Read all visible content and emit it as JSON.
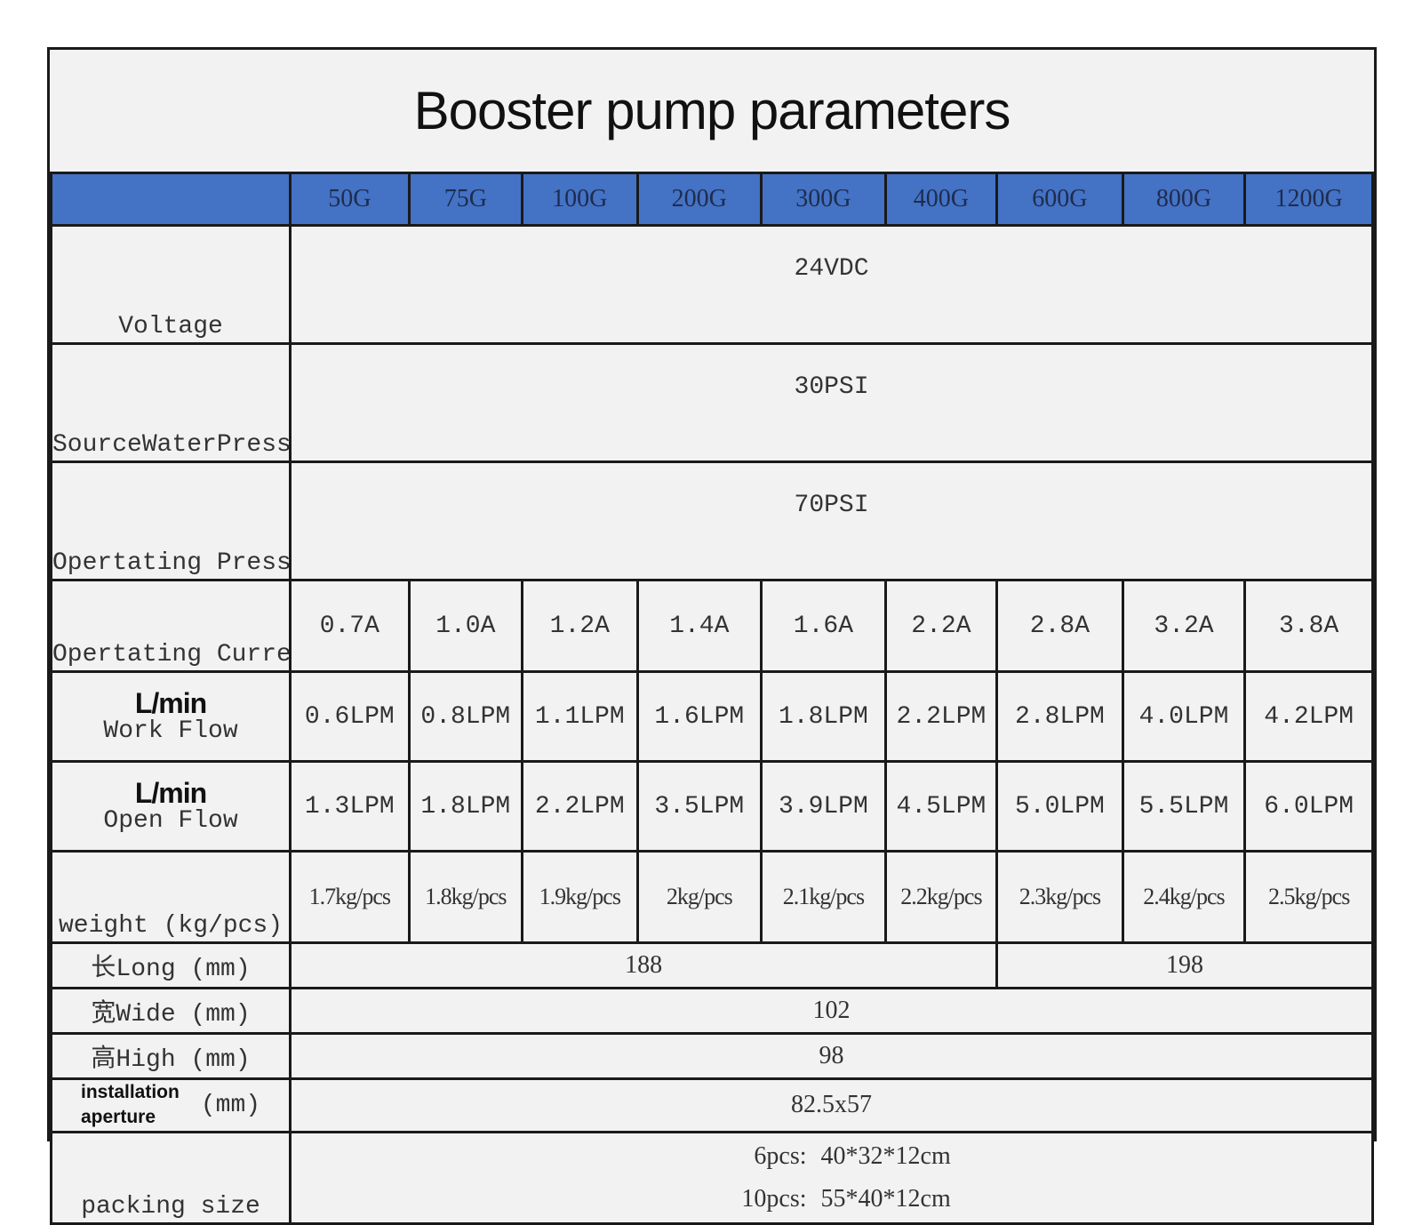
{
  "title": "Booster pump parameters",
  "models": [
    "50G",
    "75G",
    "100G",
    "200G",
    "300G",
    "400G",
    "600G",
    "800G",
    "1200G"
  ],
  "rows": {
    "voltage": {
      "label": "Voltage",
      "value": "24VDC"
    },
    "source_pressure": {
      "label": "SourceWaterPressure",
      "value": "30PSI"
    },
    "operating_pressure": {
      "label": "Opertating Pressure",
      "value": "70PSI"
    },
    "operating_current": {
      "label": "Opertating Current",
      "values": [
        "0.7A",
        "1.0A",
        "1.2A",
        "1.4A",
        "1.6A",
        "2.2A",
        "2.8A",
        "3.2A",
        "3.8A"
      ]
    },
    "work_flow": {
      "unit": "L/min",
      "label": "Work Flow",
      "values": [
        "0.6LPM",
        "0.8LPM",
        "1.1LPM",
        "1.6LPM",
        "1.8LPM",
        "2.2LPM",
        "2.8LPM",
        "4.0LPM",
        "4.2LPM"
      ]
    },
    "open_flow": {
      "unit": "L/min",
      "label": "Open Flow",
      "values": [
        "1.3LPM",
        "1.8LPM",
        "2.2LPM",
        "3.5LPM",
        "3.9LPM",
        "4.5LPM",
        "5.0LPM",
        "5.5LPM",
        "6.0LPM"
      ]
    },
    "weight": {
      "label": "weight (kg/pcs)",
      "values": [
        "1.7kg/pcs",
        "1.8kg/pcs",
        "1.9kg/pcs",
        "2kg/pcs",
        "2.1kg/pcs",
        "2.2kg/pcs",
        "2.3kg/pcs",
        "2.4kg/pcs",
        "2.5kg/pcs"
      ]
    },
    "long": {
      "label": "长Long (mm)",
      "value_a": "188",
      "value_b": "198"
    },
    "wide": {
      "label": "宽Wide (mm)",
      "value": "102"
    },
    "high": {
      "label": "高High (mm)",
      "value": "98"
    },
    "aperture": {
      "label_line1": "installation",
      "label_line2": "aperture",
      "unit": "(mm)",
      "value": "82.5x57"
    },
    "packing": {
      "label": "packing size",
      "lines": [
        {
          "qty": "6pcs:",
          "size": "40*32*12cm"
        },
        {
          "qty": "10pcs:",
          "size": "55*40*12cm"
        }
      ]
    }
  }
}
